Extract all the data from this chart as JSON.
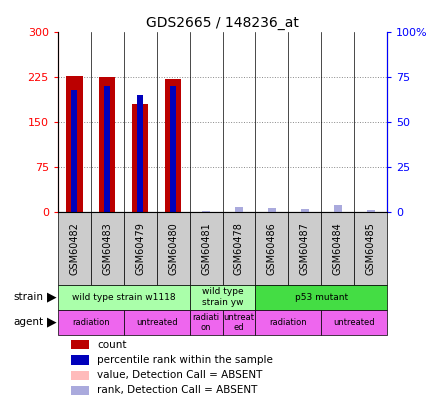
{
  "title": "GDS2665 / 148236_at",
  "samples": [
    "GSM60482",
    "GSM60483",
    "GSM60479",
    "GSM60480",
    "GSM60481",
    "GSM60478",
    "GSM60486",
    "GSM60487",
    "GSM60484",
    "GSM60485"
  ],
  "count_values": [
    228,
    226,
    180,
    222,
    0,
    0,
    0,
    0,
    0,
    0
  ],
  "rank_values_pct": [
    68,
    70,
    65,
    70,
    0,
    0,
    0,
    0,
    0,
    0
  ],
  "absent_count": [
    0,
    0,
    0,
    0,
    0,
    8,
    2,
    3,
    5,
    0
  ],
  "absent_rank_pct": [
    0,
    0,
    0,
    0,
    1,
    3,
    2.5,
    2,
    4,
    1.5
  ],
  "count_color": "#bb0000",
  "rank_color": "#0000bb",
  "absent_count_color": "#ffbbbb",
  "absent_rank_color": "#aaaadd",
  "ylim_left": [
    0,
    300
  ],
  "ylim_right": [
    0,
    100
  ],
  "yticks_left": [
    0,
    75,
    150,
    225,
    300
  ],
  "yticks_right": [
    0,
    25,
    50,
    75,
    100
  ],
  "ytick_labels_left": [
    "0",
    "75",
    "150",
    "225",
    "300"
  ],
  "ytick_labels_right": [
    "0",
    "25",
    "50",
    "75",
    "100%"
  ],
  "strain_groups": [
    {
      "label": "wild type strain w1118",
      "start": 0,
      "end": 4,
      "color": "#aaffaa"
    },
    {
      "label": "wild type\nstrain yw",
      "start": 4,
      "end": 6,
      "color": "#aaffaa"
    },
    {
      "label": "p53 mutant",
      "start": 6,
      "end": 10,
      "color": "#44dd44"
    }
  ],
  "agent_groups": [
    {
      "label": "radiation",
      "start": 0,
      "end": 2,
      "color": "#ee66ee"
    },
    {
      "label": "untreated",
      "start": 2,
      "end": 4,
      "color": "#ee66ee"
    },
    {
      "label": "radiati\non",
      "start": 4,
      "end": 5,
      "color": "#ee66ee"
    },
    {
      "label": "untreat\ned",
      "start": 5,
      "end": 6,
      "color": "#ee66ee"
    },
    {
      "label": "radiation",
      "start": 6,
      "end": 8,
      "color": "#ee66ee"
    },
    {
      "label": "untreated",
      "start": 8,
      "end": 10,
      "color": "#ee66ee"
    }
  ],
  "grid_color": "#888888",
  "sample_label_bg": "#cccccc",
  "bar_width": 0.5,
  "rank_bar_width": 0.18,
  "absent_bar_width": 0.25,
  "legend_items": [
    {
      "color": "#bb0000",
      "label": "count"
    },
    {
      "color": "#0000bb",
      "label": "percentile rank within the sample"
    },
    {
      "color": "#ffbbbb",
      "label": "value, Detection Call = ABSENT"
    },
    {
      "color": "#aaaadd",
      "label": "rank, Detection Call = ABSENT"
    }
  ]
}
